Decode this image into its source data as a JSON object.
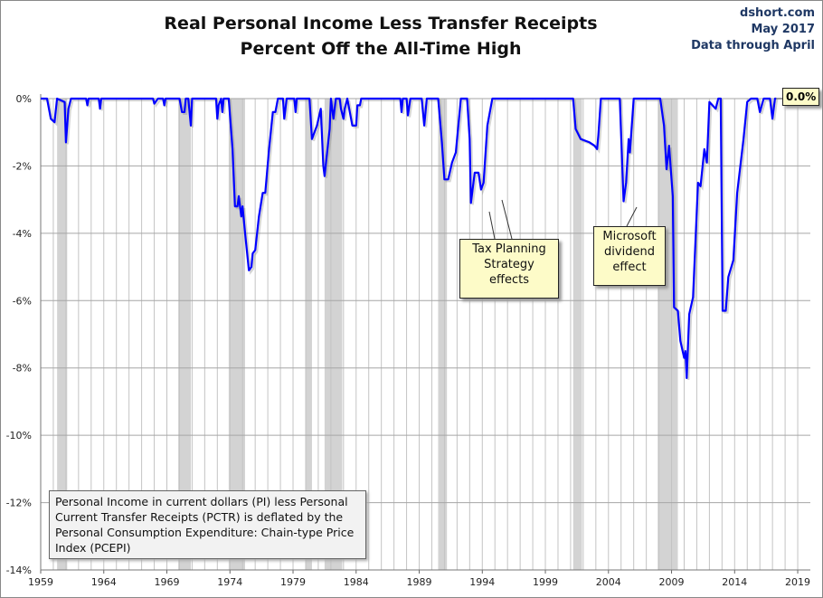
{
  "header": {
    "title_line1": "Real Personal Income Less Transfer Receipts",
    "title_line2": "Percent Off the All-Time High",
    "source": "dshort.com",
    "date": "May 2017",
    "data_through": "Data through April"
  },
  "annotations": {
    "tax": [
      "Tax Planning",
      "Strategy",
      "effects"
    ],
    "microsoft": [
      "Microsoft",
      "dividend",
      "effect"
    ],
    "last_value": "0.0%"
  },
  "footnote": "Personal Income in current dollars  (PI) less Personal Current Transfer Receipts (PCTR) is deflated by the Personal Consumption Expenditure: Chain-type Price Index (PCEPI)",
  "chart_data": {
    "type": "line",
    "xlim": [
      1959,
      2020
    ],
    "ylim": [
      -14,
      0
    ],
    "x_ticks": [
      "1959",
      "1964",
      "1969",
      "1974",
      "1979",
      "1984",
      "1989",
      "1994",
      "1999",
      "2004",
      "2009",
      "2014",
      "2019"
    ],
    "y_ticks": [
      "0%",
      "-2%",
      "-4%",
      "-6%",
      "-8%",
      "-10%",
      "-12%",
      "-14%"
    ],
    "grid": true,
    "line_color": "#0000ff",
    "recession_color": "#d3d3d3",
    "recessions": [
      [
        1960.3,
        1961.1
      ],
      [
        1969.9,
        1970.9
      ],
      [
        1973.9,
        1975.2
      ],
      [
        1980.0,
        1980.5
      ],
      [
        1981.5,
        1982.9
      ],
      [
        1990.5,
        1991.2
      ],
      [
        2001.2,
        2001.9
      ],
      [
        2007.9,
        2009.5
      ]
    ],
    "series": [
      {
        "points": [
          [
            1959.0,
            0
          ],
          [
            1959.5,
            0
          ],
          [
            1959.8,
            -0.6
          ],
          [
            1960.1,
            -0.7
          ],
          [
            1960.3,
            0
          ],
          [
            1960.9,
            -0.1
          ],
          [
            1961.0,
            -1.3
          ],
          [
            1961.2,
            -0.3
          ],
          [
            1961.4,
            0
          ],
          [
            1962.6,
            0
          ],
          [
            1962.7,
            -0.2
          ],
          [
            1962.8,
            0
          ],
          [
            1963.6,
            0
          ],
          [
            1963.7,
            -0.3
          ],
          [
            1963.8,
            0
          ],
          [
            1967.9,
            0
          ],
          [
            1968.0,
            -0.15
          ],
          [
            1968.3,
            0
          ],
          [
            1968.7,
            0
          ],
          [
            1968.8,
            -0.2
          ],
          [
            1968.9,
            0
          ],
          [
            1970.0,
            0
          ],
          [
            1970.2,
            -0.4
          ],
          [
            1970.4,
            -0.4
          ],
          [
            1970.5,
            0
          ],
          [
            1970.7,
            0
          ],
          [
            1970.9,
            -0.8
          ],
          [
            1971.0,
            0
          ],
          [
            1972.9,
            0
          ],
          [
            1973.0,
            -0.6
          ],
          [
            1973.1,
            -0.2
          ],
          [
            1973.3,
            0
          ],
          [
            1973.4,
            -0.4
          ],
          [
            1973.5,
            0
          ],
          [
            1973.9,
            0
          ],
          [
            1974.2,
            -1.5
          ],
          [
            1974.4,
            -3.2
          ],
          [
            1974.6,
            -3.2
          ],
          [
            1974.7,
            -2.9
          ],
          [
            1974.9,
            -3.5
          ],
          [
            1975.0,
            -3.2
          ],
          [
            1975.2,
            -4.0
          ],
          [
            1975.5,
            -5.1
          ],
          [
            1975.7,
            -5.0
          ],
          [
            1975.8,
            -4.6
          ],
          [
            1976.0,
            -4.5
          ],
          [
            1976.3,
            -3.5
          ],
          [
            1976.6,
            -2.8
          ],
          [
            1976.8,
            -2.8
          ],
          [
            1977.1,
            -1.5
          ],
          [
            1977.4,
            -0.4
          ],
          [
            1977.6,
            -0.4
          ],
          [
            1977.8,
            0
          ],
          [
            1978.2,
            0
          ],
          [
            1978.3,
            -0.6
          ],
          [
            1978.5,
            0
          ],
          [
            1979.1,
            0
          ],
          [
            1979.2,
            -0.4
          ],
          [
            1979.3,
            0
          ],
          [
            1980.3,
            0
          ],
          [
            1980.5,
            -1.2
          ],
          [
            1980.9,
            -0.8
          ],
          [
            1981.2,
            -0.3
          ],
          [
            1981.4,
            -2.0
          ],
          [
            1981.5,
            -2.3
          ],
          [
            1981.9,
            -0.9
          ],
          [
            1982.0,
            0
          ],
          [
            1982.2,
            -0.6
          ],
          [
            1982.4,
            0
          ],
          [
            1982.7,
            0
          ],
          [
            1982.8,
            -0.3
          ],
          [
            1983.0,
            -0.6
          ],
          [
            1983.1,
            -0.3
          ],
          [
            1983.3,
            0
          ],
          [
            1983.6,
            -0.6
          ],
          [
            1983.7,
            -0.8
          ],
          [
            1984.0,
            -0.8
          ],
          [
            1984.1,
            -0.2
          ],
          [
            1984.3,
            -0.2
          ],
          [
            1984.4,
            0
          ],
          [
            1987.5,
            0
          ],
          [
            1987.6,
            -0.4
          ],
          [
            1987.7,
            0
          ],
          [
            1988.0,
            0
          ],
          [
            1988.1,
            -0.5
          ],
          [
            1988.3,
            0
          ],
          [
            1989.2,
            0
          ],
          [
            1989.4,
            -0.8
          ],
          [
            1989.6,
            0
          ],
          [
            1990.5,
            0
          ],
          [
            1990.8,
            -1.3
          ],
          [
            1991.0,
            -2.4
          ],
          [
            1991.3,
            -2.4
          ],
          [
            1991.6,
            -1.9
          ],
          [
            1991.9,
            -1.6
          ],
          [
            1992.1,
            -0.8
          ],
          [
            1992.3,
            0
          ],
          [
            1992.8,
            0
          ],
          [
            1993.0,
            -1.2
          ],
          [
            1993.1,
            -3.1
          ],
          [
            1993.4,
            -2.2
          ],
          [
            1993.7,
            -2.2
          ],
          [
            1993.9,
            -2.7
          ],
          [
            1994.1,
            -2.5
          ],
          [
            1994.4,
            -0.8
          ],
          [
            1994.8,
            0
          ],
          [
            2001.2,
            0
          ],
          [
            2001.4,
            -0.9
          ],
          [
            2001.8,
            -1.2
          ],
          [
            2002.5,
            -1.3
          ],
          [
            2002.9,
            -1.4
          ],
          [
            2003.1,
            -1.5
          ],
          [
            2003.2,
            -1.1
          ],
          [
            2003.4,
            0
          ],
          [
            2004.9,
            0
          ],
          [
            2005.2,
            -3.05
          ],
          [
            2005.4,
            -2.5
          ],
          [
            2005.6,
            -1.2
          ],
          [
            2005.7,
            -1.6
          ],
          [
            2006.0,
            0
          ],
          [
            2008.1,
            0
          ],
          [
            2008.4,
            -0.8
          ],
          [
            2008.6,
            -2.1
          ],
          [
            2008.8,
            -1.4
          ],
          [
            2009.1,
            -2.9
          ],
          [
            2009.2,
            -6.2
          ],
          [
            2009.5,
            -6.3
          ],
          [
            2009.7,
            -7.2
          ],
          [
            2010.0,
            -7.7
          ],
          [
            2010.1,
            -7.5
          ],
          [
            2010.2,
            -8.3
          ],
          [
            2010.4,
            -6.4
          ],
          [
            2010.7,
            -5.9
          ],
          [
            2011.1,
            -2.5
          ],
          [
            2011.3,
            -2.6
          ],
          [
            2011.6,
            -1.5
          ],
          [
            2011.8,
            -1.9
          ],
          [
            2012.0,
            -0.1
          ],
          [
            2012.5,
            -0.3
          ],
          [
            2012.7,
            0
          ],
          [
            2012.9,
            0
          ],
          [
            2013.05,
            -6.3
          ],
          [
            2013.3,
            -6.3
          ],
          [
            2013.5,
            -5.3
          ],
          [
            2013.9,
            -4.8
          ],
          [
            2014.2,
            -2.8
          ],
          [
            2014.7,
            -1.2
          ],
          [
            2015.0,
            -0.1
          ],
          [
            2015.3,
            0
          ],
          [
            2015.8,
            0
          ],
          [
            2016.0,
            -0.4
          ],
          [
            2016.3,
            0
          ],
          [
            2016.8,
            0
          ],
          [
            2017.0,
            -0.6
          ],
          [
            2017.2,
            0
          ],
          [
            2017.3,
            0
          ]
        ]
      }
    ]
  }
}
